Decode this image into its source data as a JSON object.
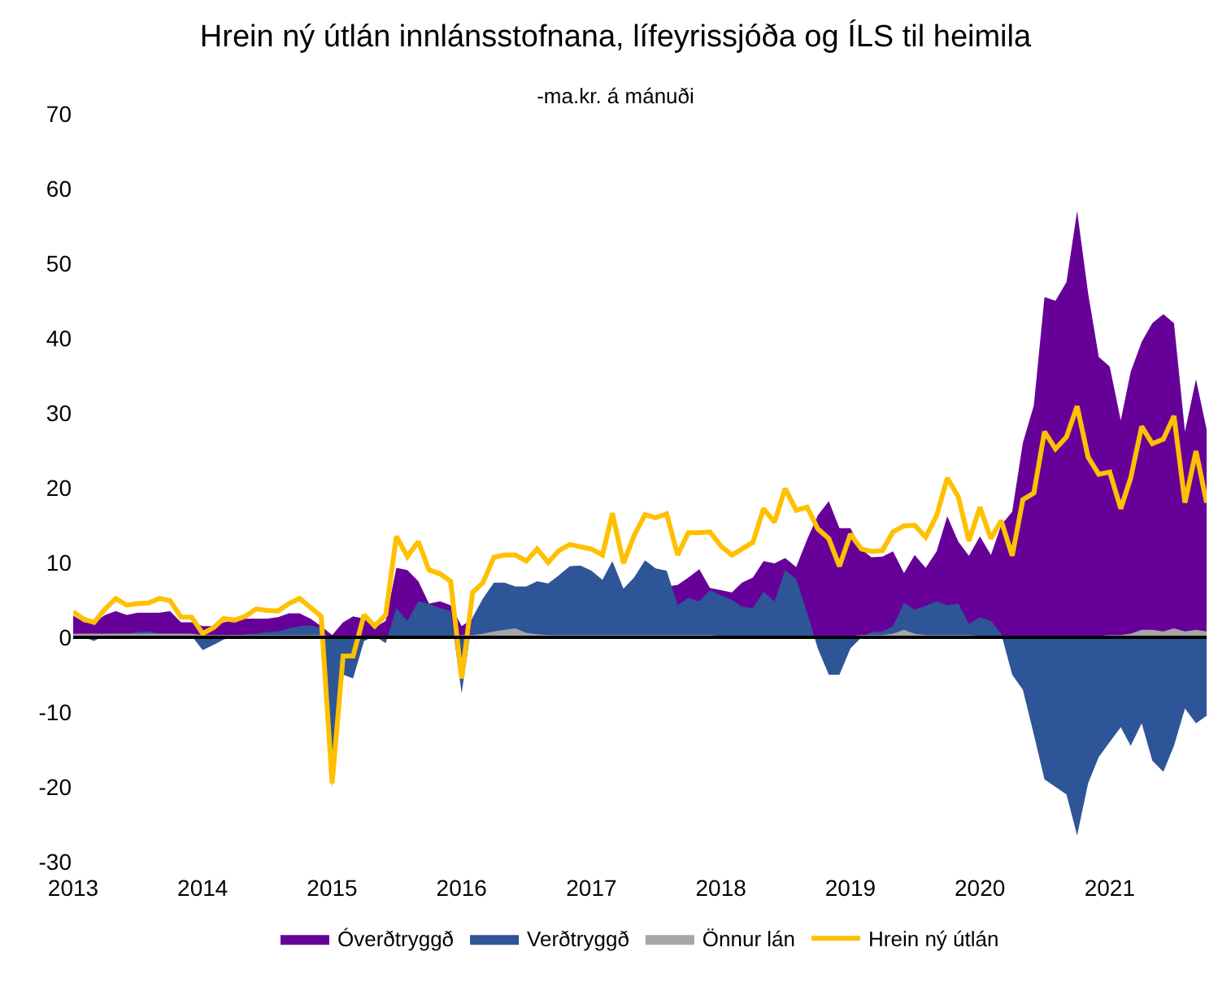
{
  "chart_data": {
    "type": "area",
    "title": "Hrein ný útlán innlánsstofnana, lífeyrissjóða og ÍLS til heimila",
    "subtitle": "-ma.kr. á mánuði",
    "x": [
      "2013-01",
      "2013-02",
      "2013-03",
      "2013-04",
      "2013-05",
      "2013-06",
      "2013-07",
      "2013-08",
      "2013-09",
      "2013-10",
      "2013-11",
      "2013-12",
      "2014-01",
      "2014-02",
      "2014-03",
      "2014-04",
      "2014-05",
      "2014-06",
      "2014-07",
      "2014-08",
      "2014-09",
      "2014-10",
      "2014-11",
      "2014-12",
      "2015-01",
      "2015-02",
      "2015-03",
      "2015-04",
      "2015-05",
      "2015-06",
      "2015-07",
      "2015-08",
      "2015-09",
      "2015-10",
      "2015-11",
      "2015-12",
      "2016-01",
      "2016-02",
      "2016-03",
      "2016-04",
      "2016-05",
      "2016-06",
      "2016-07",
      "2016-08",
      "2016-09",
      "2016-10",
      "2016-11",
      "2016-12",
      "2017-01",
      "2017-02",
      "2017-03",
      "2017-04",
      "2017-05",
      "2017-06",
      "2017-07",
      "2017-08",
      "2017-09",
      "2017-10",
      "2017-11",
      "2017-12",
      "2018-01",
      "2018-02",
      "2018-03",
      "2018-04",
      "2018-05",
      "2018-06",
      "2018-07",
      "2018-08",
      "2018-09",
      "2018-10",
      "2018-11",
      "2018-12",
      "2019-01",
      "2019-02",
      "2019-03",
      "2019-04",
      "2019-05",
      "2019-06",
      "2019-07",
      "2019-08",
      "2019-09",
      "2019-10",
      "2019-11",
      "2019-12",
      "2020-01",
      "2020-02",
      "2020-03",
      "2020-04",
      "2020-05",
      "2020-06",
      "2020-07",
      "2020-08",
      "2020-09",
      "2020-10",
      "2020-11",
      "2020-12",
      "2021-01",
      "2021-02",
      "2021-03",
      "2021-04",
      "2021-05",
      "2021-06",
      "2021-07",
      "2021-08",
      "2021-09",
      "2021-10"
    ],
    "series": [
      {
        "name": "Óverðtryggð",
        "color": "#660099",
        "values": [
          2.9,
          2,
          2,
          3,
          3.5,
          3,
          3.3,
          3.3,
          3.3,
          3.5,
          2,
          2,
          1.5,
          1.5,
          2,
          2.3,
          2.5,
          2.5,
          2.5,
          2.7,
          3.2,
          3.2,
          2.5,
          1.5,
          0.3,
          2,
          2.8,
          2.5,
          1.3,
          2.2,
          9.3,
          9,
          7.5,
          4.5,
          4.8,
          4.3,
          1.5,
          2.5,
          null,
          null,
          null,
          null,
          null,
          null,
          null,
          null,
          null,
          null,
          null,
          null,
          null,
          null,
          null,
          null,
          null,
          null,
          7,
          8,
          9.1,
          6.6,
          6.3,
          6,
          7.3,
          8,
          10.2,
          9.9,
          10.6,
          9.4,
          13.1,
          16.3,
          18.2,
          14.6,
          14.6,
          11.8,
          10.7,
          10.8,
          11.5,
          8.6,
          11,
          9.3,
          11.5,
          16.2,
          12.8,
          10.9,
          13.5,
          11,
          15,
          16.8,
          26,
          31,
          45.5,
          45,
          47.5,
          57,
          46,
          37.5,
          36.2,
          29,
          35.5,
          39.5,
          42,
          43.2,
          42,
          27.5,
          34.5,
          27.8
        ]
      },
      {
        "name": "Verðtryggð",
        "color": "#2e5597",
        "values": [
          0.3,
          0,
          -0.5,
          0.3,
          0.5,
          0.5,
          0.7,
          0.8,
          0.5,
          0.3,
          0.3,
          0.2,
          -1.7,
          -1,
          -0.3,
          0.2,
          0.4,
          0.5,
          0.7,
          0.8,
          1.2,
          1.5,
          1.6,
          1.2,
          -20,
          -5,
          -5.5,
          -0.5,
          0.2,
          -0.8,
          3.9,
          2.2,
          4.8,
          4.5,
          3.9,
          3.5,
          -7.5,
          2.7,
          5.2,
          7.3,
          7.3,
          6.8,
          6.8,
          7.5,
          7.2,
          8.3,
          9.5,
          9.6,
          8.9,
          7.7,
          10.2,
          6.5,
          8,
          10.3,
          9.2,
          8.9,
          4.3,
          5.3,
          4.8,
          6.3,
          5.6,
          5,
          4.1,
          3.9,
          6.1,
          4.8,
          9,
          7.8,
          3.3,
          -1.5,
          -5,
          -5,
          -1.5,
          0,
          0.7,
          0.8,
          1.5,
          4.6,
          3.7,
          4.2,
          4.8,
          4.3,
          4.5,
          1.8,
          2.7,
          2.2,
          0.5,
          -5,
          -7,
          -13,
          -19,
          -20,
          -21,
          -26.5,
          -19.5,
          -16,
          -14,
          -12,
          -14.5,
          -11.5,
          -16.5,
          -18,
          -14.5,
          -9.5,
          -11.5,
          -10.5
        ]
      },
      {
        "name": "Önnur lán",
        "color": "#a6a6a6",
        "values": [
          0.5,
          0.5,
          0.5,
          0.5,
          0.5,
          0.5,
          0.5,
          0.5,
          0.5,
          0.5,
          0.5,
          0.5,
          0.3,
          0.3,
          0.3,
          0.3,
          0.3,
          0.3,
          0.3,
          0.3,
          0.3,
          0.3,
          0.3,
          0.3,
          0.2,
          0.2,
          0.2,
          0.2,
          0.2,
          0.2,
          0.2,
          0.2,
          0.2,
          0.2,
          0.2,
          0.2,
          0.3,
          0.3,
          0.5,
          0.8,
          1,
          1.2,
          0.6,
          0.4,
          0.3,
          0.3,
          0.3,
          0.3,
          0.3,
          0.3,
          0.3,
          0.3,
          0.3,
          0.3,
          0.3,
          0.3,
          0.3,
          0.3,
          0.3,
          0.3,
          0.2,
          0.2,
          0.2,
          0.2,
          0.2,
          0.2,
          0.2,
          0.2,
          0.2,
          0.2,
          0.2,
          0.2,
          0.2,
          0.3,
          0.3,
          0.3,
          0.5,
          1,
          0.5,
          0.3,
          0.3,
          0.3,
          0.3,
          0.3,
          0.2,
          0.2,
          0.2,
          0.2,
          0.2,
          0.2,
          0.2,
          0.2,
          0.2,
          0.2,
          0.2,
          0.2,
          0.3,
          0.3,
          0.5,
          1,
          1,
          0.8,
          1.2,
          0.8,
          1,
          0.8
        ]
      },
      {
        "name": "Hrein ný útlán",
        "type": "line",
        "color": "#ffc000",
        "values": [
          3.4,
          2.4,
          2,
          3.8,
          5.2,
          4.3,
          4.5,
          4.6,
          5.2,
          4.9,
          2.7,
          2.7,
          0.5,
          1.3,
          2.5,
          2.3,
          2.8,
          3.8,
          3.6,
          3.5,
          4.5,
          5.2,
          4,
          2.8,
          -19.5,
          -2.5,
          -2.5,
          3,
          1.5,
          3,
          13.5,
          10.8,
          12.8,
          9,
          8.5,
          7.5,
          -5.5,
          6,
          7.3,
          10.7,
          11,
          11,
          10.2,
          11.8,
          10,
          11.6,
          12.4,
          12.1,
          11.8,
          11,
          16.6,
          9.9,
          13.6,
          16.4,
          16,
          16.5,
          11,
          14,
          14,
          14.1,
          12.2,
          11,
          11.8,
          12.7,
          17.2,
          15.4,
          19.9,
          17,
          17.4,
          14.5,
          13.2,
          9.5,
          13.8,
          11.8,
          11.5,
          11.6,
          14.1,
          14.9,
          15,
          13.4,
          16.3,
          21.3,
          18.8,
          12.9,
          17.4,
          13.2,
          15.6,
          10.9,
          18.4,
          19.3,
          27.5,
          25.2,
          26.8,
          30.9,
          24.1,
          21.8,
          22.1,
          17.2,
          21.3,
          28.2,
          25.9,
          26.5,
          29.6,
          18,
          24.9,
          18
        ]
      }
    ],
    "xlim": [
      "2013-01",
      "2021-10"
    ],
    "xticks": [
      {
        "value": "2013-01",
        "label": "2013"
      },
      {
        "value": "2014-01",
        "label": "2014"
      },
      {
        "value": "2015-01",
        "label": "2015"
      },
      {
        "value": "2016-01",
        "label": "2016"
      },
      {
        "value": "2017-01",
        "label": "2017"
      },
      {
        "value": "2018-01",
        "label": "2018"
      },
      {
        "value": "2019-01",
        "label": "2019"
      },
      {
        "value": "2020-01",
        "label": "2020"
      },
      {
        "value": "2021-01",
        "label": "2021"
      }
    ],
    "ylim": [
      -30,
      70
    ],
    "yticks": [
      -30,
      -20,
      -10,
      0,
      10,
      20,
      30,
      40,
      50,
      60,
      70
    ],
    "ref_lines": [
      {
        "axis": "y",
        "value": 0,
        "color": "#000000"
      }
    ],
    "grid": false,
    "legend": "bottom"
  }
}
